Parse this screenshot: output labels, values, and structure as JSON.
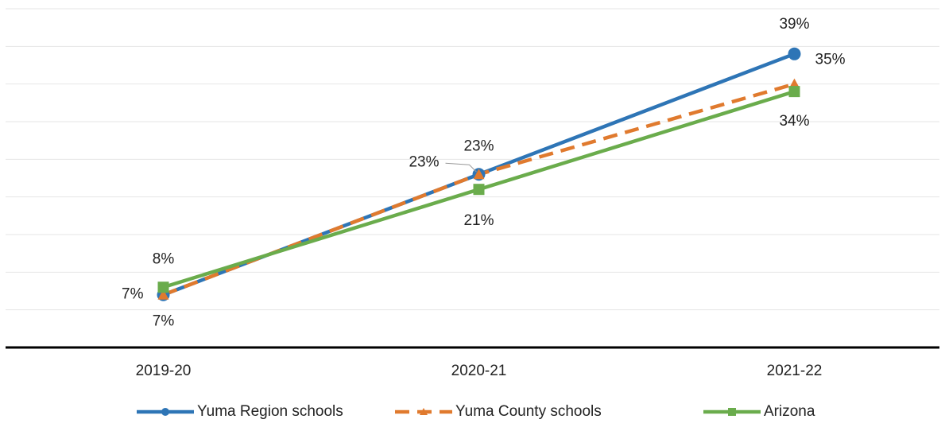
{
  "chart_data": {
    "type": "line",
    "categories": [
      "2019-20",
      "2020-21",
      "2021-22"
    ],
    "series": [
      {
        "name": "Yuma Region schools",
        "color": "#2e75b6",
        "marker": "circle",
        "dash": "solid",
        "values": [
          7,
          23,
          39
        ],
        "value_labels": [
          "7%",
          "23%",
          "39%"
        ]
      },
      {
        "name": "Yuma County schools",
        "color": "#e07a2e",
        "marker": "triangle",
        "dash": "dashed",
        "values": [
          7,
          23,
          35
        ],
        "value_labels": [
          "7%",
          "23%",
          "35%"
        ]
      },
      {
        "name": "Arizona",
        "color": "#6aac4c",
        "marker": "square",
        "dash": "solid",
        "values": [
          8,
          21,
          34
        ],
        "value_labels": [
          "8%",
          "21%",
          "34%"
        ]
      }
    ],
    "ylim": [
      0,
      45
    ],
    "yticks": [
      0,
      5,
      10,
      15,
      20,
      25,
      30,
      35,
      40,
      45
    ],
    "grid": true,
    "legend": "bottom"
  }
}
